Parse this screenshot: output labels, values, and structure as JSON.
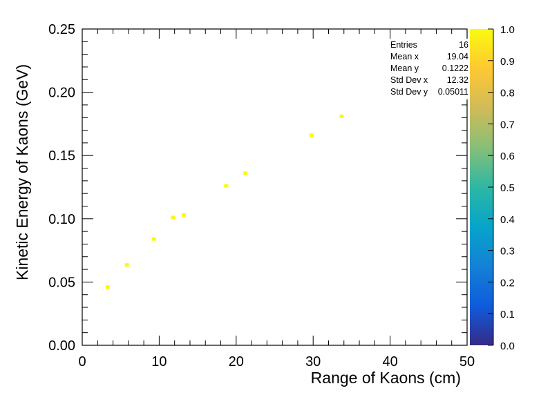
{
  "chart_data": {
    "type": "scatter",
    "title": "",
    "xlabel": "Range of Kaons (cm)",
    "ylabel": "Kinetic Energy of Kaons (GeV)",
    "xlim": [
      0,
      50
    ],
    "ylim": [
      0,
      0.25
    ],
    "x_ticks": [
      "0",
      "10",
      "20",
      "30",
      "40",
      "50"
    ],
    "y_ticks": [
      "0.00",
      "0.05",
      "0.10",
      "0.15",
      "0.20",
      "0.25"
    ],
    "grid": false,
    "points": [
      {
        "x": 3.3,
        "y": 0.046
      },
      {
        "x": 5.8,
        "y": 0.0635
      },
      {
        "x": 9.3,
        "y": 0.084
      },
      {
        "x": 11.8,
        "y": 0.101
      },
      {
        "x": 13.2,
        "y": 0.103
      },
      {
        "x": 18.7,
        "y": 0.126
      },
      {
        "x": 21.2,
        "y": 0.136
      },
      {
        "x": 29.8,
        "y": 0.166
      },
      {
        "x": 33.7,
        "y": 0.181
      }
    ],
    "point_color": "#f9fb0e",
    "color_scale": {
      "min": 0,
      "max": 1,
      "ticks": [
        "0.0",
        "0.1",
        "0.2",
        "0.3",
        "0.4",
        "0.5",
        "0.6",
        "0.7",
        "0.8",
        "0.9",
        "1.0"
      ],
      "colors": [
        "#352a87",
        "#0f5cdd",
        "#1481d6",
        "#06a4ca",
        "#2eb7a4",
        "#87bf77",
        "#d1bb59",
        "#fec832",
        "#f9fb0e"
      ]
    },
    "stats": [
      {
        "label": "Entries",
        "value": "16"
      },
      {
        "label": "Mean x",
        "value": "19.04"
      },
      {
        "label": "Mean y",
        "value": "0.1222"
      },
      {
        "label": "Std Dev x",
        "value": "12.32"
      },
      {
        "label": "Std Dev y",
        "value": "0.05011"
      }
    ]
  }
}
